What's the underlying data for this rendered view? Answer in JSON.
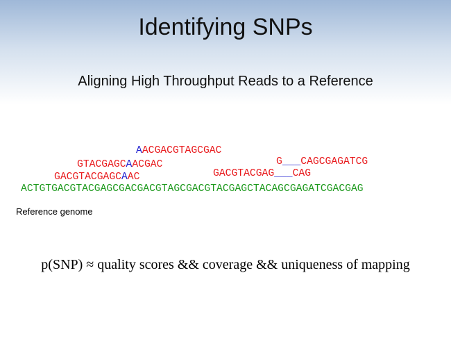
{
  "title": "Identifying SNPs",
  "subtitle": "Aligning High Throughput Reads to a Reference",
  "reads": [
    {
      "segments": [
        {
          "text": "A",
          "color": "#1f1fd0"
        },
        {
          "text": "ACGACGTAGCGAC",
          "color": "#e8191c"
        }
      ]
    },
    {
      "segments": [
        {
          "text": "GTACGAGC",
          "color": "#e8191c"
        },
        {
          "text": "A",
          "color": "#1f1fd0"
        },
        {
          "text": "ACGAC",
          "color": "#e8191c"
        }
      ]
    },
    {
      "segments": [
        {
          "text": "GACGTACGAGC",
          "color": "#e8191c"
        },
        {
          "text": "A",
          "color": "#1f1fd0"
        },
        {
          "text": "AC",
          "color": "#e8191c"
        }
      ]
    },
    {
      "segments": [
        {
          "text": "G",
          "color": "#e8191c"
        },
        {
          "text": "___",
          "color": "#1f1fd0"
        },
        {
          "text": "CAGCGAGATCG",
          "color": "#e8191c"
        }
      ]
    },
    {
      "segments": [
        {
          "text": "GACGTACGAG",
          "color": "#e8191c"
        },
        {
          "text": "___",
          "color": "#1f1fd0"
        },
        {
          "text": "CAG",
          "color": "#e8191c"
        }
      ]
    }
  ],
  "reference": {
    "text": "ACTGTGACGTACGAGCGACGACGTAGCGACGTACGAGCTACAGCGAGATCGACGAG",
    "color": "#1e9a1e"
  },
  "reference_label": "Reference genome",
  "formula": "p(SNP) ≈ quality scores && coverage && uniqueness of mapping"
}
